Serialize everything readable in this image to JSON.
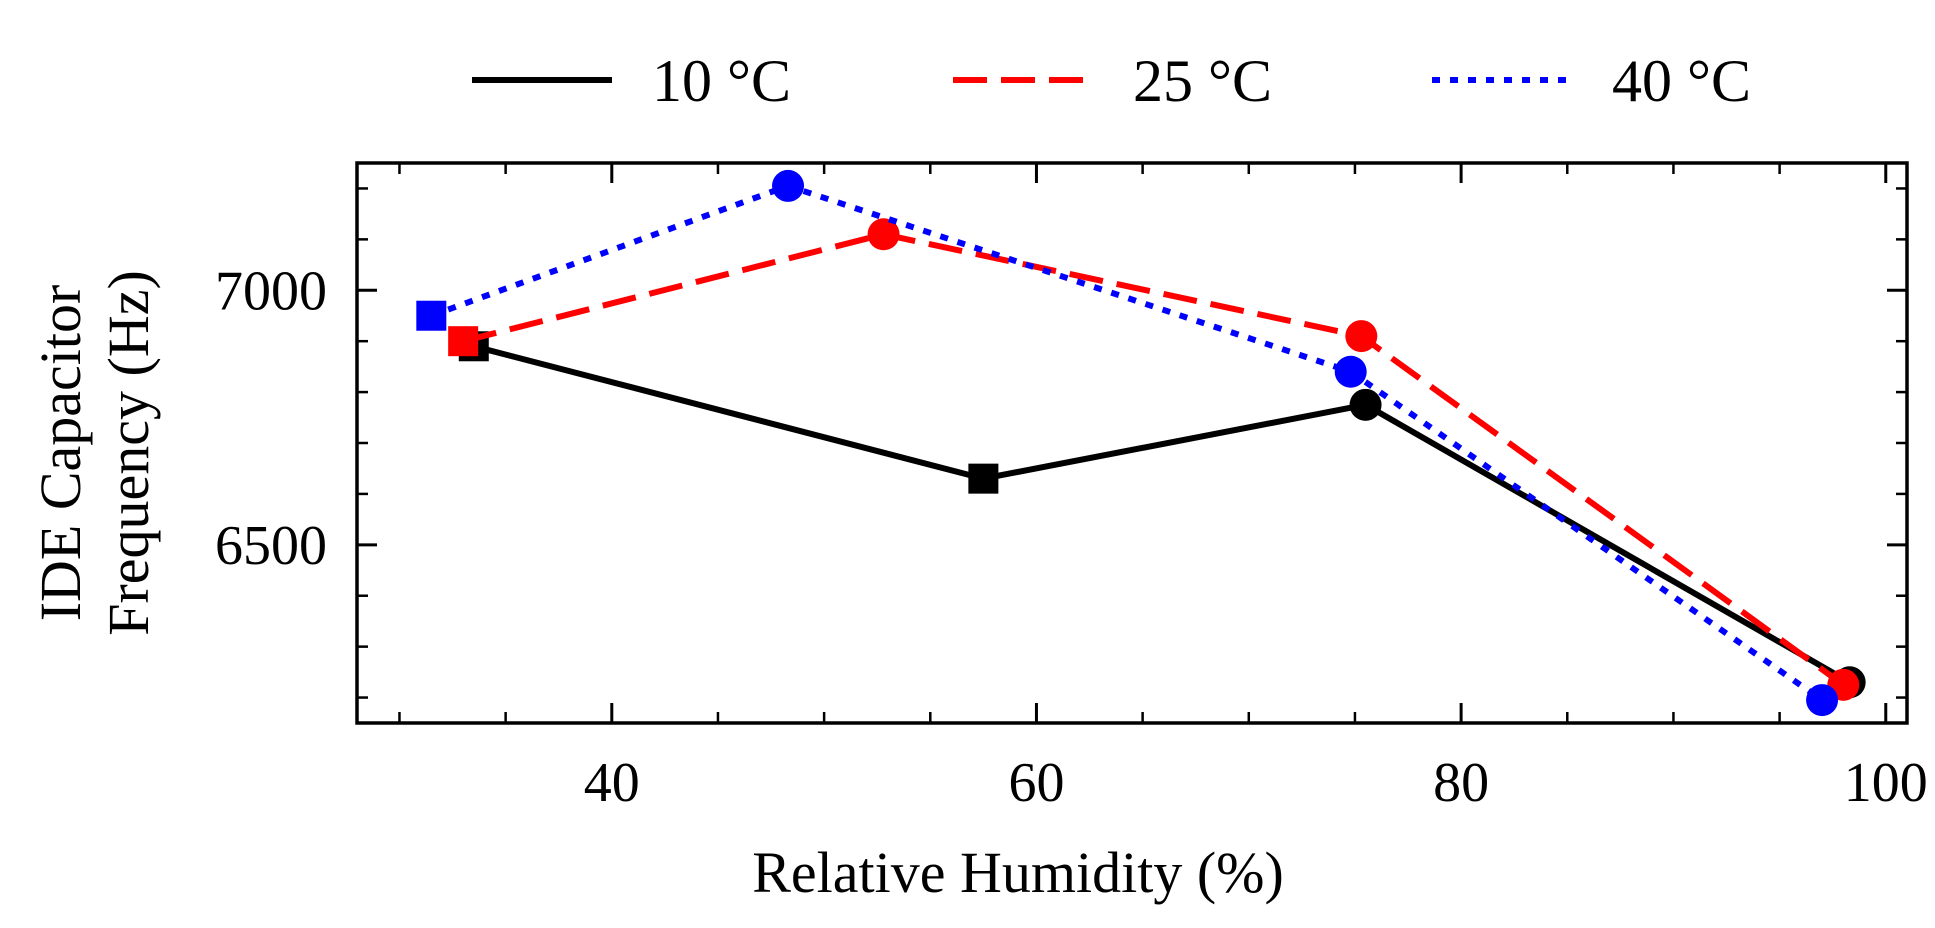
{
  "chart_data": {
    "type": "line",
    "xlabel": "Relative Humidity (%)",
    "ylabel": [
      "IDE Capacitor",
      "Frequency (Hz)"
    ],
    "xlim": [
      28,
      101
    ],
    "ylim": [
      6150,
      7250
    ],
    "xticks": [
      40,
      60,
      80,
      100
    ],
    "yticks": [
      6500,
      7000
    ],
    "grid": false,
    "legend_position": "top",
    "series": [
      {
        "name": "10 °C",
        "color": "#000000",
        "dash": "solid",
        "points": [
          {
            "x": 33.5,
            "y": 6890,
            "marker": "square"
          },
          {
            "x": 57.5,
            "y": 6630,
            "marker": "square"
          },
          {
            "x": 75.5,
            "y": 6775,
            "marker": "circle"
          },
          {
            "x": 98.3,
            "y": 6230,
            "marker": "circle"
          }
        ]
      },
      {
        "name": "25 °C",
        "color": "#ff0000",
        "dash": "dashed",
        "points": [
          {
            "x": 33.0,
            "y": 6900,
            "marker": "square"
          },
          {
            "x": 52.8,
            "y": 7110,
            "marker": "circle"
          },
          {
            "x": 75.3,
            "y": 6910,
            "marker": "circle"
          },
          {
            "x": 98.0,
            "y": 6225,
            "marker": "circle"
          }
        ]
      },
      {
        "name": "40 °C",
        "color": "#0000ff",
        "dash": "dotted",
        "points": [
          {
            "x": 31.5,
            "y": 6950,
            "marker": "square"
          },
          {
            "x": 48.3,
            "y": 7205,
            "marker": "circle"
          },
          {
            "x": 74.8,
            "y": 6840,
            "marker": "circle"
          },
          {
            "x": 97.0,
            "y": 6195,
            "marker": "circle"
          }
        ]
      }
    ]
  }
}
